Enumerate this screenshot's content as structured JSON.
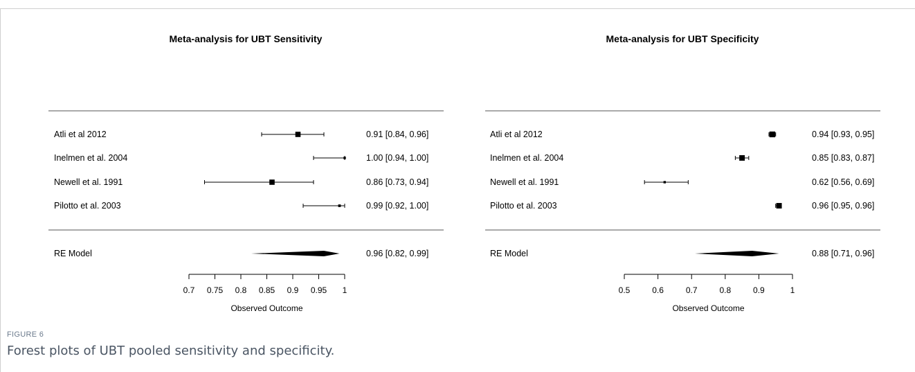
{
  "figure": {
    "label": "FIGURE 6",
    "caption": "Forest plots of UBT pooled sensitivity and specificity."
  },
  "chart_data": [
    {
      "type": "forest",
      "title": "Meta-analysis for UBT Sensitivity",
      "xlabel": "Observed Outcome",
      "xlim": [
        0.7,
        1
      ],
      "ticks": [
        0.7,
        0.75,
        0.8,
        0.85,
        0.9,
        0.95,
        1
      ],
      "tick_labels": [
        "0.7",
        "0.75",
        "0.8",
        "0.85",
        "0.9",
        "0.95",
        "1"
      ],
      "studies": [
        {
          "name": "Atli et al 2012",
          "est": 0.91,
          "lo": 0.84,
          "hi": 0.96,
          "label": "0.91 [0.84, 0.96]",
          "weight": 0.8
        },
        {
          "name": "Inelmen et al. 2004",
          "est": 1.0,
          "lo": 0.94,
          "hi": 1.0,
          "label": "1.00 [0.94, 1.00]",
          "weight": 0.2
        },
        {
          "name": "Newell et al. 1991",
          "est": 0.86,
          "lo": 0.73,
          "hi": 0.94,
          "label": "0.86 [0.73, 0.94]",
          "weight": 0.8
        },
        {
          "name": "Pilotto et al. 2003",
          "est": 0.99,
          "lo": 0.92,
          "hi": 1.0,
          "label": "0.99 [0.92, 1.00]",
          "weight": 0.25
        }
      ],
      "pooled": {
        "name": "RE Model",
        "est": 0.96,
        "lo": 0.82,
        "hi": 0.99,
        "label": "0.96 [0.82, 0.99]"
      }
    },
    {
      "type": "forest",
      "title": "Meta-analysis for UBT Specificity",
      "xlabel": "Observed Outcome",
      "xlim": [
        0.5,
        1
      ],
      "ticks": [
        0.5,
        0.6,
        0.7,
        0.8,
        0.9,
        1
      ],
      "tick_labels": [
        "0.5",
        "0.6",
        "0.7",
        "0.8",
        "0.9",
        "1"
      ],
      "studies": [
        {
          "name": "Atli et al 2012",
          "est": 0.94,
          "lo": 0.93,
          "hi": 0.95,
          "label": "0.94 [0.93, 0.95]",
          "weight": 0.9
        },
        {
          "name": "Inelmen et al. 2004",
          "est": 0.85,
          "lo": 0.83,
          "hi": 0.87,
          "label": "0.85 [0.83, 0.87]",
          "weight": 0.85
        },
        {
          "name": "Newell et al. 1991",
          "est": 0.62,
          "lo": 0.56,
          "hi": 0.69,
          "label": "0.62 [0.56, 0.69]",
          "weight": 0.2
        },
        {
          "name": "Pilotto et al. 2003",
          "est": 0.96,
          "lo": 0.95,
          "hi": 0.96,
          "label": "0.96 [0.95, 0.96]",
          "weight": 0.85
        }
      ],
      "pooled": {
        "name": "RE Model",
        "est": 0.88,
        "lo": 0.71,
        "hi": 0.96,
        "label": "0.88 [0.71, 0.96]"
      }
    }
  ]
}
